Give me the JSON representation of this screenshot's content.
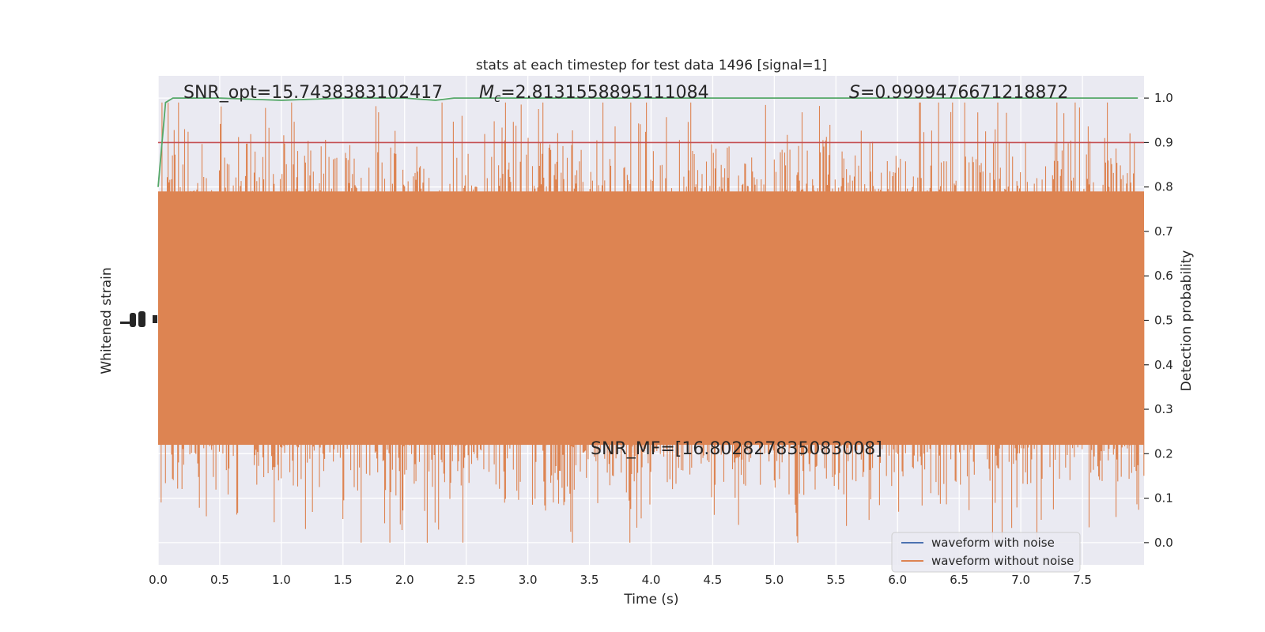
{
  "chart_data": {
    "type": "line",
    "title": "stats at each timestep for test data 1496 [signal=1]",
    "xlabel": "Time (s)",
    "ylabel_left": "Whitened strain",
    "ylabel_right": "Detection probability",
    "xlim": [
      0,
      8
    ],
    "ylim_right": [
      -0.05,
      1.05
    ],
    "x_ticks": [
      "0.0",
      "0.5",
      "1.0",
      "1.5",
      "2.0",
      "2.5",
      "3.0",
      "3.5",
      "4.0",
      "4.5",
      "5.0",
      "5.5",
      "6.0",
      "6.5",
      "7.0",
      "7.5"
    ],
    "y_ticks_right": [
      "0.0",
      "0.1",
      "0.2",
      "0.3",
      "0.4",
      "0.5",
      "0.6",
      "0.7",
      "0.8",
      "0.9",
      "1.0"
    ],
    "annotations": {
      "snr_opt": "SNR_opt=15.7438383102417",
      "mc_symbol": "M",
      "mc_sub": "c",
      "mc_value": "=2.8131558895111084",
      "s_symbol": "S",
      "s_value": "=0.9999476671218872",
      "snr_mf": "SNR_MF=[16.802827835083008]"
    },
    "threshold": 0.9,
    "series": [
      {
        "name": "waveform with noise",
        "color": "#4c72b0",
        "style": "line"
      },
      {
        "name": "waveform without noise",
        "color": "#dd8452",
        "style": "line"
      }
    ],
    "probability_curve": {
      "color": "#55a868",
      "x": [
        0.0,
        0.06,
        0.12,
        0.5,
        1.0,
        1.5,
        2.0,
        2.25,
        2.4,
        3.0,
        4.0,
        5.0,
        6.0,
        7.0,
        7.95
      ],
      "y": [
        0.8,
        0.99,
        1.0,
        1.0,
        0.995,
        1.0,
        1.0,
        0.995,
        1.0,
        1.0,
        1.0,
        1.0,
        1.0,
        1.0,
        1.0
      ]
    },
    "threshold_color": "#c44e52",
    "grid": true,
    "legend_position": "lower-right",
    "background_color": "#eaeaf2"
  }
}
